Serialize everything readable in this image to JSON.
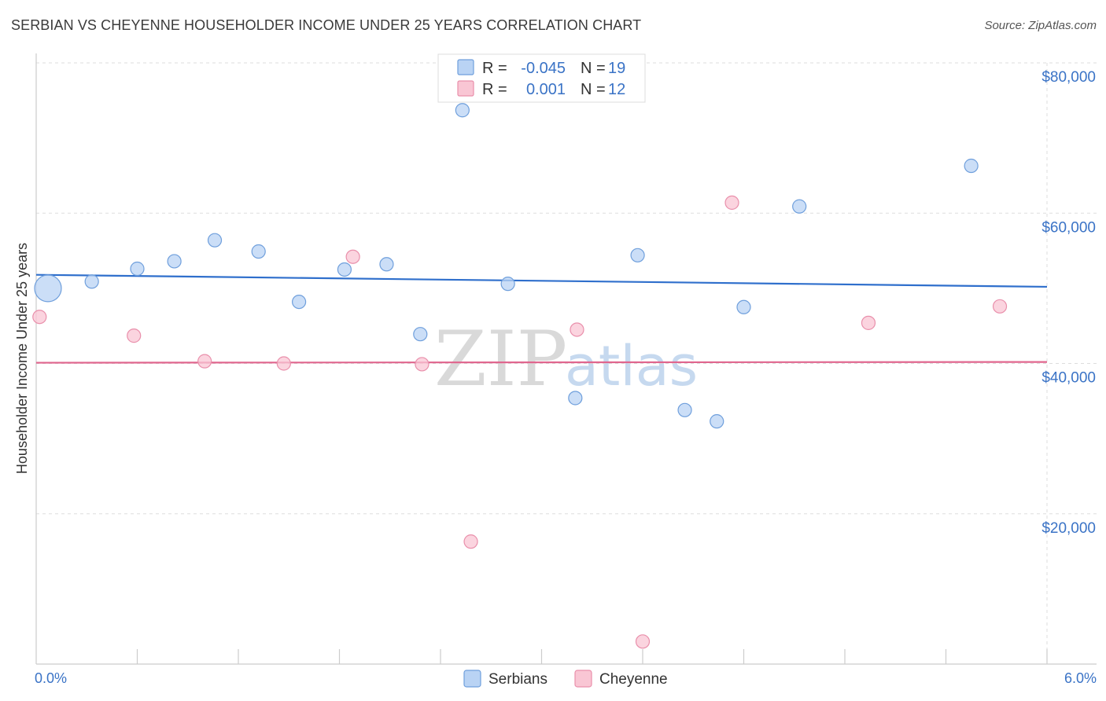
{
  "header": {
    "title": "SERBIAN VS CHEYENNE HOUSEHOLDER INCOME UNDER 25 YEARS CORRELATION CHART",
    "source": "Source: ZipAtlas.com"
  },
  "watermark": {
    "zip": "ZIP",
    "atlas": "atlas"
  },
  "colors": {
    "serbians_fill": "#b9d3f4",
    "serbians_stroke": "#6f9fdc",
    "serbians_line": "#2f6fcc",
    "cheyenne_fill": "#f9c6d4",
    "cheyenne_stroke": "#e98fab",
    "cheyenne_line": "#e0668e",
    "axis_label": "#3a73c6"
  },
  "legend": {
    "rows": [
      {
        "r_label": "R =",
        "r_value": "-0.045",
        "n_label": "N =",
        "n_value": "19"
      },
      {
        "r_label": "R =",
        "r_value": "0.001",
        "n_label": "N =",
        "n_value": "12"
      }
    ]
  },
  "chart_data": {
    "type": "scatter",
    "title": "SERBIAN VS CHEYENNE HOUSEHOLDER INCOME UNDER 25 YEARS CORRELATION CHART",
    "xlabel": "",
    "ylabel": "Householder Income Under 25 years",
    "xlim": [
      0,
      6
    ],
    "ylim": [
      0,
      80000
    ],
    "x_tick_labels": [
      "0.0%",
      "6.0%"
    ],
    "y_ticks": [
      20000,
      40000,
      60000,
      80000
    ],
    "y_tick_labels": [
      "$20,000",
      "$40,000",
      "$60,000",
      "$80,000"
    ],
    "grid": true,
    "legend_position": "top-center",
    "series": [
      {
        "name": "Serbians",
        "r": -0.045,
        "n": 19,
        "trend": {
          "x": [
            0,
            6
          ],
          "y": [
            51800,
            50200
          ]
        },
        "points": [
          {
            "x": 0.07,
            "y": 50000,
            "size": "large"
          },
          {
            "x": 0.33,
            "y": 50900
          },
          {
            "x": 0.6,
            "y": 52600
          },
          {
            "x": 0.82,
            "y": 53600
          },
          {
            "x": 1.06,
            "y": 56400
          },
          {
            "x": 1.32,
            "y": 54900
          },
          {
            "x": 1.56,
            "y": 48200
          },
          {
            "x": 1.83,
            "y": 52500
          },
          {
            "x": 2.08,
            "y": 53200
          },
          {
            "x": 2.28,
            "y": 43900
          },
          {
            "x": 2.53,
            "y": 73700
          },
          {
            "x": 2.8,
            "y": 50600
          },
          {
            "x": 3.2,
            "y": 35400
          },
          {
            "x": 3.57,
            "y": 54400
          },
          {
            "x": 3.85,
            "y": 33800
          },
          {
            "x": 4.04,
            "y": 32300
          },
          {
            "x": 4.2,
            "y": 47500
          },
          {
            "x": 4.53,
            "y": 60900
          },
          {
            "x": 5.55,
            "y": 66300
          }
        ]
      },
      {
        "name": "Cheyenne",
        "r": 0.001,
        "n": 12,
        "trend": {
          "x": [
            0,
            6
          ],
          "y": [
            40100,
            40200
          ]
        },
        "points": [
          {
            "x": 0.02,
            "y": 46200
          },
          {
            "x": 0.58,
            "y": 43700
          },
          {
            "x": 1.0,
            "y": 40300
          },
          {
            "x": 1.47,
            "y": 40000
          },
          {
            "x": 1.88,
            "y": 54200
          },
          {
            "x": 2.29,
            "y": 39900
          },
          {
            "x": 2.58,
            "y": 16300
          },
          {
            "x": 3.21,
            "y": 44500
          },
          {
            "x": 3.6,
            "y": 3000
          },
          {
            "x": 4.13,
            "y": 61400
          },
          {
            "x": 4.94,
            "y": 45400
          },
          {
            "x": 5.72,
            "y": 47600
          }
        ]
      }
    ]
  }
}
